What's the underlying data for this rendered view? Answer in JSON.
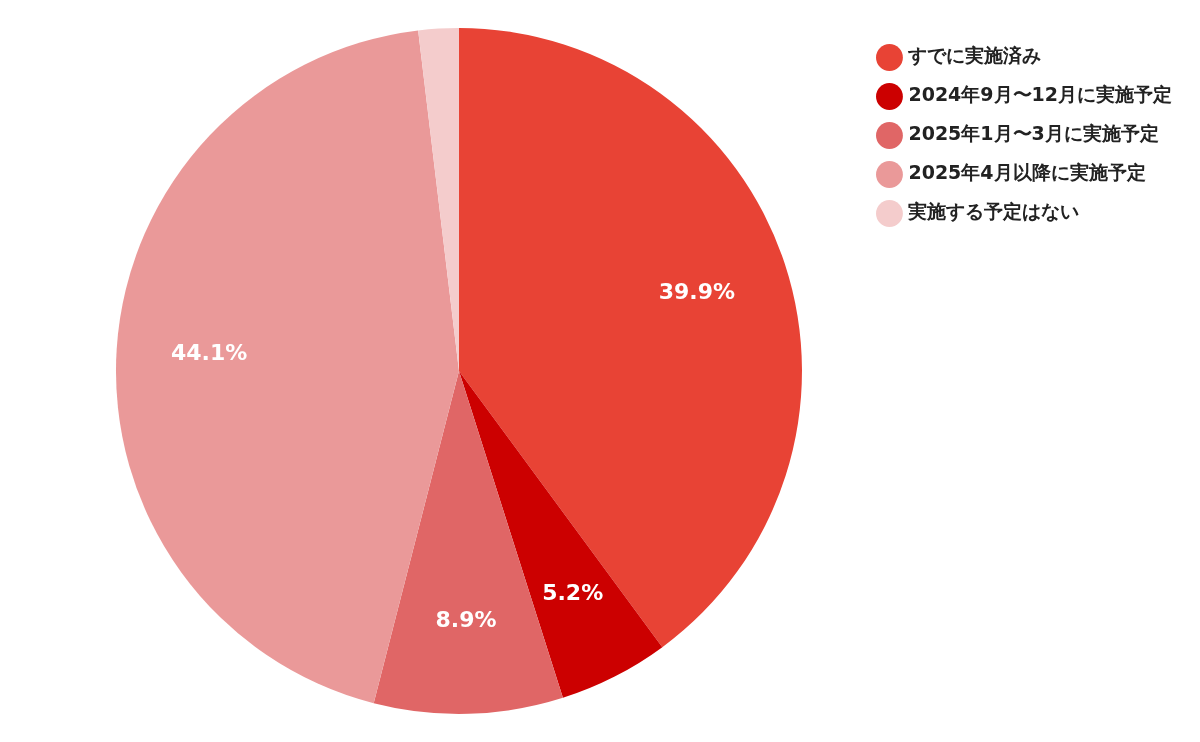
{
  "chart_data": {
    "type": "pie",
    "categories": [
      "すでに実施済み",
      "2024年9月〜12月に実施予定",
      "2025年1月〜3月に実施予定",
      "2025年4月以降に実施予定",
      "実施する予定はない"
    ],
    "values": [
      39.9,
      5.2,
      8.9,
      44.1,
      1.9
    ],
    "colors": [
      "#e84335",
      "#cc0000",
      "#e06666",
      "#ea9999",
      "#f4cccc"
    ],
    "value_labels": [
      "39.9%",
      "5.2%",
      "8.9%",
      "44.1%",
      null
    ],
    "legend": "top right"
  }
}
